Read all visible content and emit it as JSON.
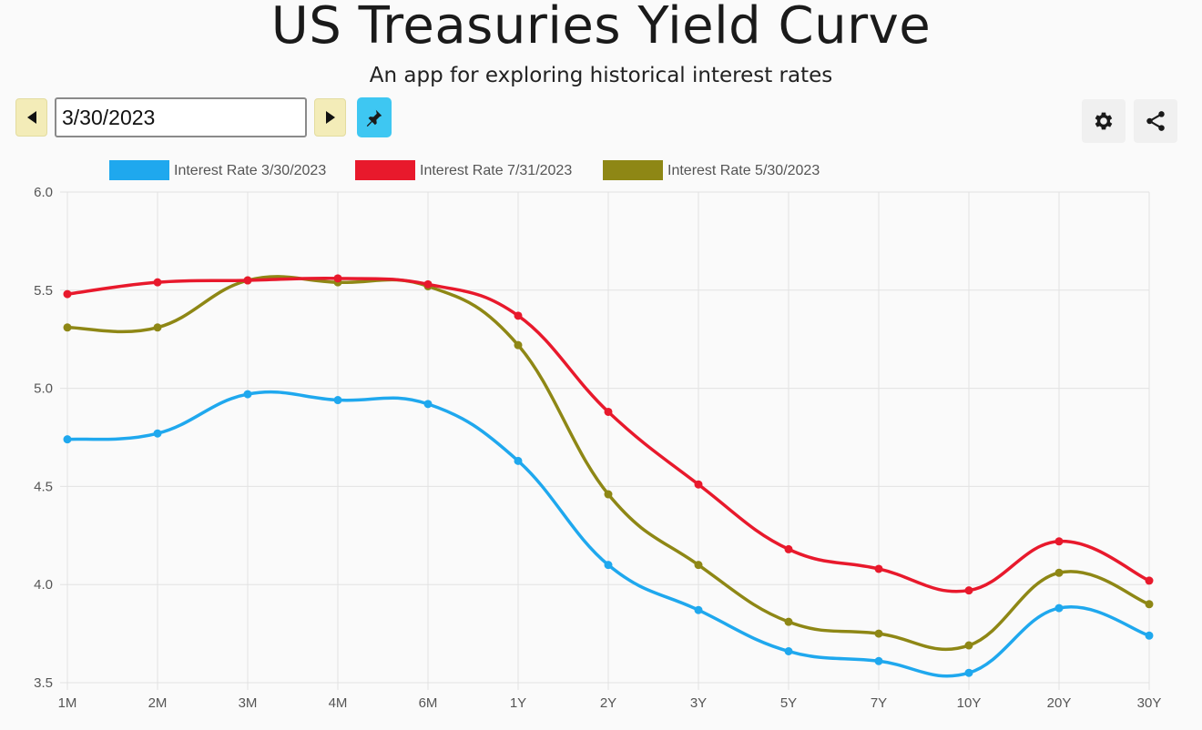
{
  "header": {
    "title": "US Treasuries Yield Curve",
    "subtitle": "An app for exploring historical interest rates"
  },
  "toolbar": {
    "date_value": "3/30/2023",
    "prev_icon": "triangle-left-icon",
    "next_icon": "triangle-right-icon",
    "pin_icon": "pin-icon",
    "settings_icon": "gear-icon",
    "share_icon": "share-icon"
  },
  "colors": {
    "prev_next_bg": "#f3ecb8",
    "pin_bg": "#3ec7f2"
  },
  "chart_data": {
    "type": "line",
    "title": "",
    "xlabel": "",
    "ylabel": "",
    "categories": [
      "1M",
      "2M",
      "3M",
      "4M",
      "6M",
      "1Y",
      "2Y",
      "3Y",
      "5Y",
      "7Y",
      "10Y",
      "20Y",
      "30Y"
    ],
    "ylim": [
      3.5,
      6.0
    ],
    "yticks": [
      "6.0",
      "5.5",
      "5.0",
      "4.5",
      "4.0",
      "3.5"
    ],
    "grid": true,
    "legend_position": "top-left",
    "series": [
      {
        "name": "Interest Rate 3/30/2023",
        "color": "#1fa8ee",
        "values": [
          4.74,
          4.77,
          4.97,
          4.94,
          4.92,
          4.63,
          4.1,
          3.87,
          3.66,
          3.61,
          3.55,
          3.88,
          3.74
        ]
      },
      {
        "name": "Interest Rate 7/31/2023",
        "color": "#e8192c",
        "values": [
          5.48,
          5.54,
          5.55,
          5.56,
          5.53,
          5.37,
          4.88,
          4.51,
          4.18,
          4.08,
          3.97,
          4.22,
          4.02
        ]
      },
      {
        "name": "Interest Rate 5/30/2023",
        "color": "#8e8715",
        "values": [
          5.31,
          5.31,
          5.55,
          5.54,
          5.52,
          5.22,
          4.46,
          4.1,
          3.81,
          3.75,
          3.69,
          4.06,
          3.9
        ]
      }
    ]
  }
}
